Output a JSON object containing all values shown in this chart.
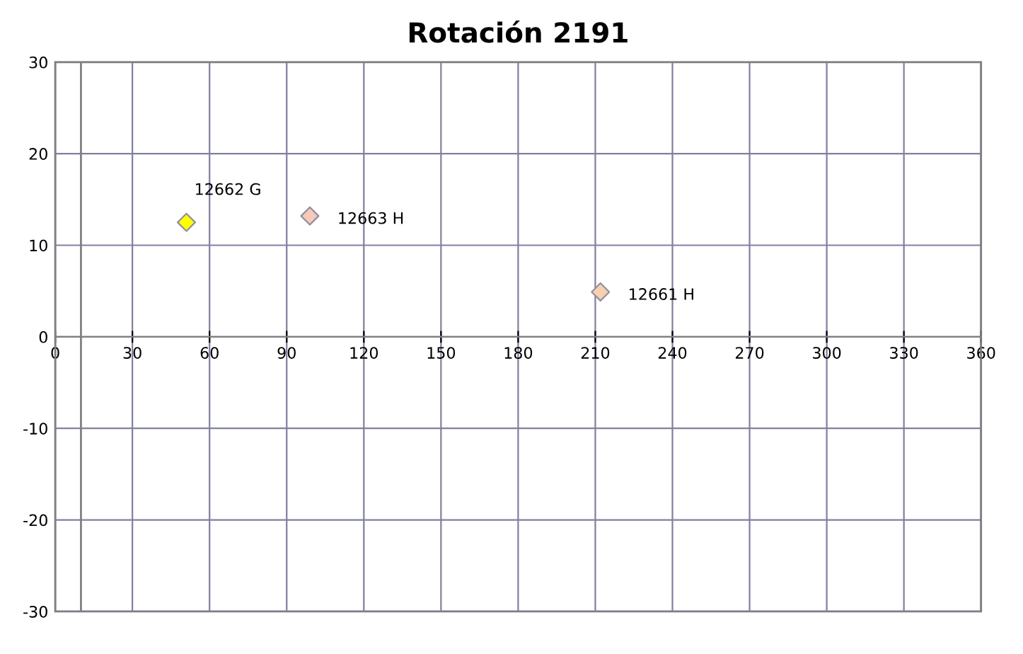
{
  "chart_data": {
    "type": "scatter",
    "title": "Rotación 2191",
    "x": [
      51,
      99,
      212
    ],
    "values": [
      12.5,
      13.2,
      4.9
    ],
    "colors": [
      "#ffff00",
      "#f8c8b8",
      "#f8d0b0"
    ],
    "marker": "diamond",
    "annotations": [
      {
        "text": "12662 G",
        "x": 51,
        "y": 12.5
      },
      {
        "text": "12663 H",
        "x": 99,
        "y": 13.2
      },
      {
        "text": "12661 H",
        "x": 212,
        "y": 4.9
      }
    ],
    "xlim": [
      0,
      360
    ],
    "xticks": [
      0,
      30,
      60,
      90,
      120,
      150,
      180,
      210,
      240,
      270,
      300,
      330,
      360
    ],
    "ylim": [
      -30,
      30
    ],
    "yticks": [
      -30,
      -20,
      -10,
      0,
      10,
      20,
      30
    ],
    "grid": true,
    "ref_lines": [
      {
        "axis": "x",
        "value": 10,
        "color": "#808080"
      }
    ]
  }
}
